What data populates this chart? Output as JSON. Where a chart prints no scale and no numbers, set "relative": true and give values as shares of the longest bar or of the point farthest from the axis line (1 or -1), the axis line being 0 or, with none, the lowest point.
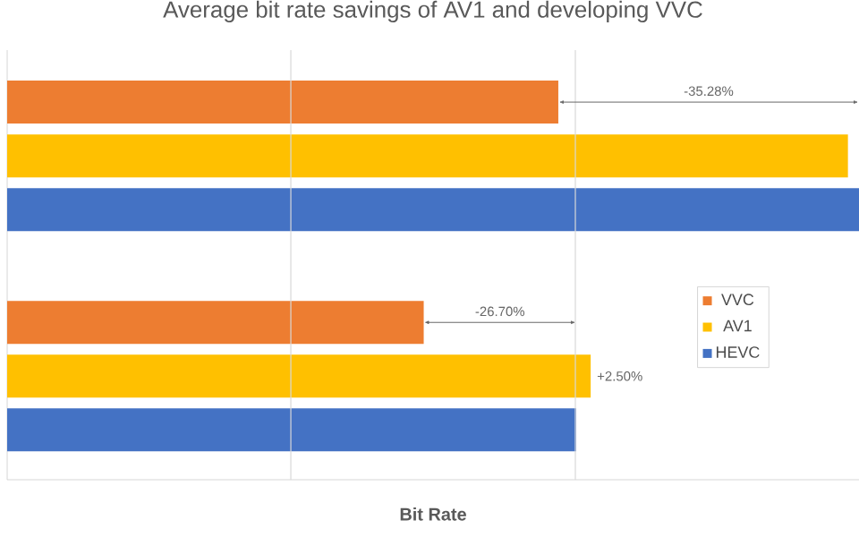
{
  "chart_data": {
    "type": "bar",
    "orientation": "horizontal",
    "relative": true,
    "title": "Average bit rate savings of AV1 and developing VVC",
    "xlabel": "Bit Rate",
    "categories": [
      null,
      null
    ],
    "series": [
      {
        "name": "VVC",
        "color": "#ed7d31",
        "values": [
          0.647,
          0.489
        ]
      },
      {
        "name": "AV1",
        "color": "#ffc000",
        "values": [
          0.987,
          0.685
        ]
      },
      {
        "name": "HEVC",
        "color": "#4472c4",
        "values": [
          1,
          0.668
        ]
      }
    ],
    "annotations": [
      "-35.28%",
      "-26.70%",
      "+2.50%"
    ],
    "ref_lines": [
      {
        "axis": "x",
        "value": 0.333,
        "color": "#d9d9d9"
      },
      {
        "axis": "x",
        "value": 0.667,
        "color": "#d9d9d9"
      }
    ],
    "legend": "right"
  }
}
